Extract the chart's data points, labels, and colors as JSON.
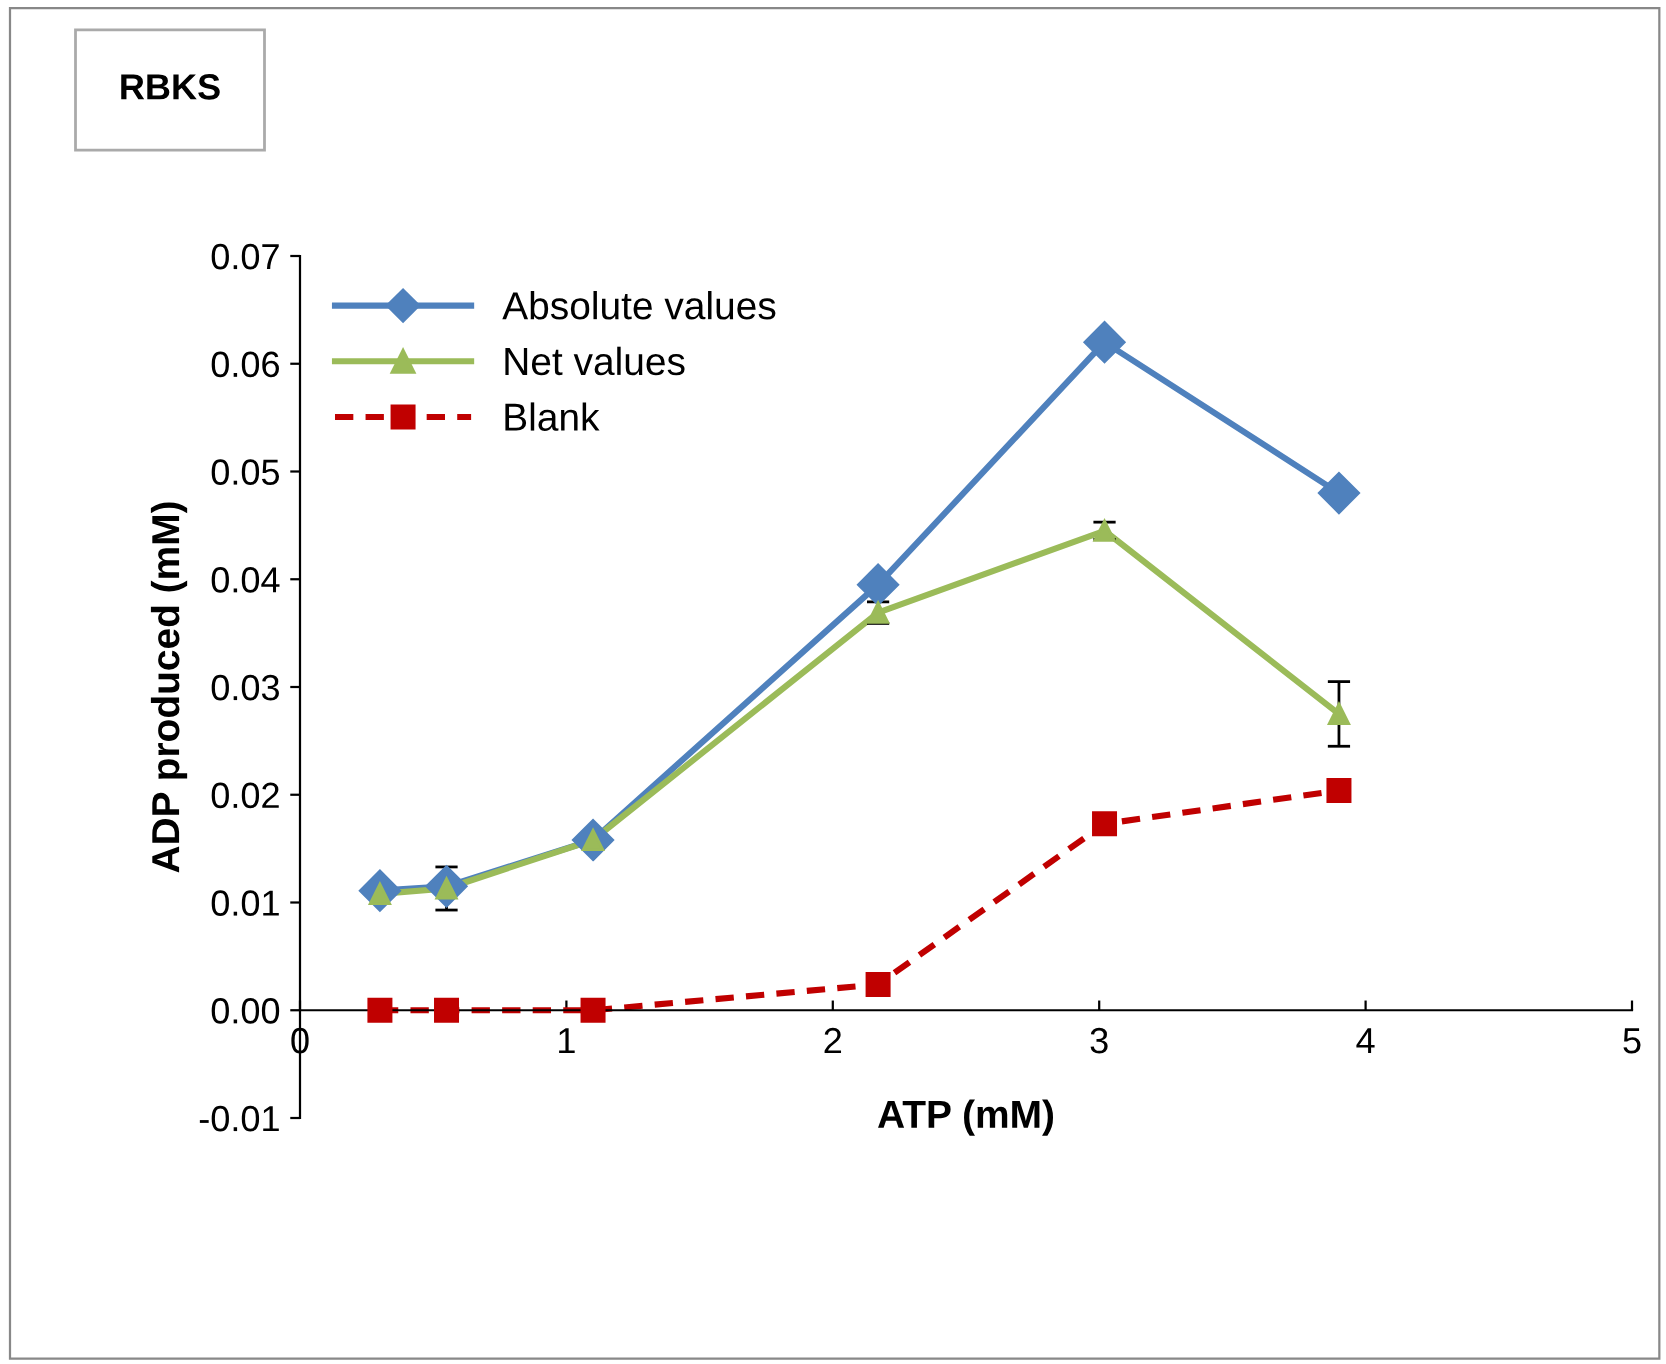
{
  "chart_data": {
    "type": "line",
    "title": "RBKS",
    "xlabel": "ATP (mM)",
    "ylabel": "ADP produced (mM)",
    "x": [
      0.3,
      0.55,
      1.1,
      2.17,
      3.02,
      3.9
    ],
    "series": [
      {
        "name": "Absolute values",
        "color": "#4f81bd",
        "marker": "diamond",
        "line_style": "solid",
        "values": [
          0.0111,
          0.0115,
          0.0158,
          0.0395,
          0.062,
          0.048
        ]
      },
      {
        "name": "Net values",
        "color": "#9bbb59",
        "marker": "triangle",
        "line_style": "solid",
        "values": [
          0.0108,
          0.0113,
          0.0158,
          0.0369,
          0.0445,
          0.0275
        ],
        "errors": [
          null,
          0.002,
          0.0008,
          0.001,
          0.0008,
          0.003
        ]
      },
      {
        "name": "Blank",
        "color": "#c00000",
        "marker": "square",
        "line_style": "dashed",
        "values": [
          0.0,
          0.0,
          0.0,
          0.0024,
          0.0173,
          0.0204
        ]
      }
    ],
    "xlim": [
      0,
      5
    ],
    "xticks": [
      0,
      1,
      2,
      3,
      4,
      5
    ],
    "ylim": [
      -0.01,
      0.07
    ],
    "yticks": [
      {
        "value": -0.01,
        "label": "-0.01"
      },
      {
        "value": 0,
        "label": "0.00"
      },
      {
        "value": 0.01,
        "label": "0.01"
      },
      {
        "value": 0.02,
        "label": "0.02"
      },
      {
        "value": 0.03,
        "label": "0.03"
      },
      {
        "value": 0.04,
        "label": "0.04"
      },
      {
        "value": 0.05,
        "label": "0.05"
      },
      {
        "value": 0.06,
        "label": "0.06"
      },
      {
        "value": 0.07,
        "label": "0.07"
      }
    ],
    "grid": false,
    "legend": "top left"
  }
}
